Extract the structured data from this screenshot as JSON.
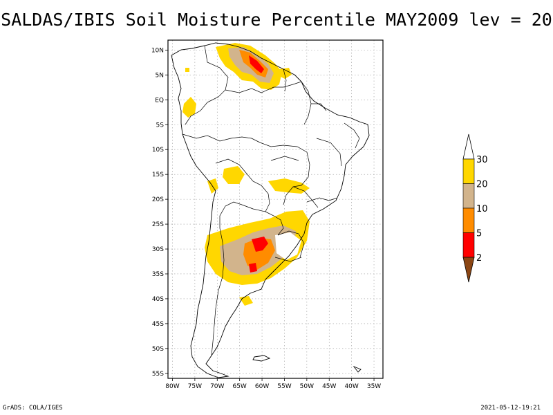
{
  "title": "SALDAS/IBIS Soil Moisture Percentile MAY2009 lev = 20",
  "footer": {
    "left": "GrADS: COLA/IGES",
    "right": "2021-05-12-19:21"
  },
  "map": {
    "lon_range": [
      -81,
      -33
    ],
    "lat_range": [
      -56,
      12
    ],
    "lat_ticks": [
      {
        "value": 10,
        "label": "10N"
      },
      {
        "value": 5,
        "label": "5N"
      },
      {
        "value": 0,
        "label": "EQ"
      },
      {
        "value": -5,
        "label": "5S"
      },
      {
        "value": -10,
        "label": "10S"
      },
      {
        "value": -15,
        "label": "15S"
      },
      {
        "value": -20,
        "label": "20S"
      },
      {
        "value": -25,
        "label": "25S"
      },
      {
        "value": -30,
        "label": "30S"
      },
      {
        "value": -35,
        "label": "35S"
      },
      {
        "value": -40,
        "label": "40S"
      },
      {
        "value": -45,
        "label": "45S"
      },
      {
        "value": -50,
        "label": "50S"
      },
      {
        "value": -55,
        "label": "55S"
      }
    ],
    "lon_ticks": [
      {
        "value": -80,
        "label": "80W"
      },
      {
        "value": -75,
        "label": "75W"
      },
      {
        "value": -70,
        "label": "70W"
      },
      {
        "value": -65,
        "label": "65W"
      },
      {
        "value": -60,
        "label": "60W"
      },
      {
        "value": -55,
        "label": "55W"
      },
      {
        "value": -50,
        "label": "50W"
      },
      {
        "value": -45,
        "label": "45W"
      },
      {
        "value": -40,
        "label": "40W"
      },
      {
        "value": -35,
        "label": "35W"
      }
    ],
    "gridlines": true
  },
  "colorbar": {
    "levels": [
      {
        "label": "30",
        "color": "#ffffff"
      },
      {
        "label": "20",
        "color": "#ffd700"
      },
      {
        "label": "10",
        "color": "#d2b48c"
      },
      {
        "label": "5",
        "color": "#ff8c00"
      },
      {
        "label": "2",
        "color": "#ff0000"
      }
    ],
    "bottom_color": "#8b4513",
    "top_color": "#ffffff"
  },
  "colors": {
    "c30": "#ffd700",
    "c20": "#d2b48c",
    "c10": "#ff8c00",
    "c5": "#ff0000",
    "c2": "#8b4513"
  }
}
